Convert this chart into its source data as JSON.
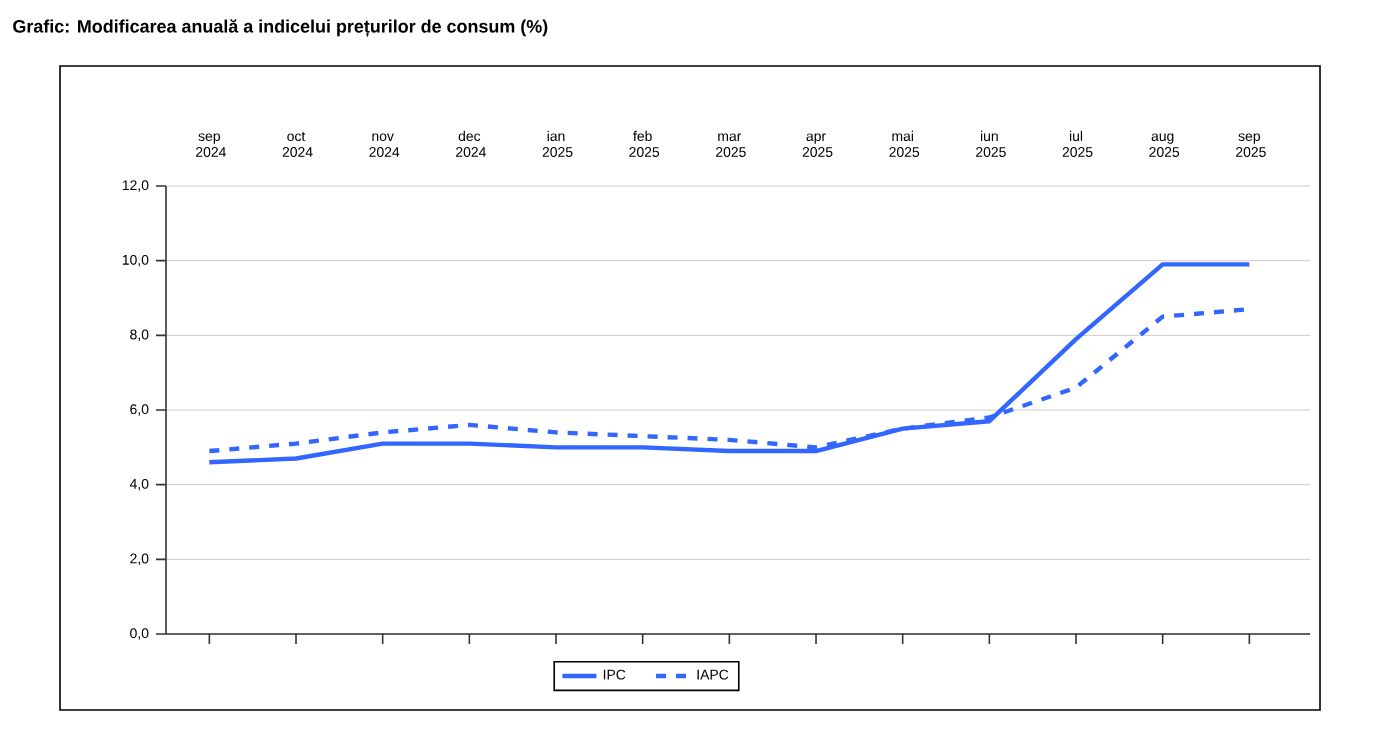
{
  "chart_data": {
    "type": "line",
    "title": "Grafic: Modificarea anuală a indicelui prețurilor de consum (%)",
    "categories": [
      "sep 2024",
      "oct 2024",
      "nov 2024",
      "dec 2024",
      "ian 2025",
      "feb 2025",
      "mar 2025",
      "apr 2025",
      "mai 2025",
      "iun 2025",
      "iul 2025",
      "aug 2025",
      "sep 2025"
    ],
    "series": [
      {
        "name": "IPC",
        "color": "#3366ff",
        "line_style": "solid",
        "values": [
          4.6,
          4.7,
          5.1,
          5.1,
          5.0,
          5.0,
          4.9,
          4.9,
          5.5,
          5.7,
          7.9,
          9.9,
          9.9
        ]
      },
      {
        "name": "IAPC",
        "color": "#3366ff",
        "line_style": "dashed",
        "values": [
          4.9,
          5.1,
          5.4,
          5.6,
          5.4,
          5.3,
          5.2,
          5.0,
          5.5,
          5.8,
          6.6,
          8.5,
          8.7
        ]
      }
    ],
    "ylim": [
      0,
      12
    ],
    "yticks": [
      {
        "value": 0,
        "label": "0,0"
      },
      {
        "value": 2,
        "label": "2,0"
      },
      {
        "value": 4,
        "label": "4,0"
      },
      {
        "value": 6,
        "label": "6,0"
      },
      {
        "value": 8,
        "label": "8,0"
      },
      {
        "value": 10,
        "label": "10,0"
      },
      {
        "value": 12,
        "label": "12,0"
      }
    ],
    "grid": "y",
    "legend": "bottom",
    "marker": "none"
  }
}
